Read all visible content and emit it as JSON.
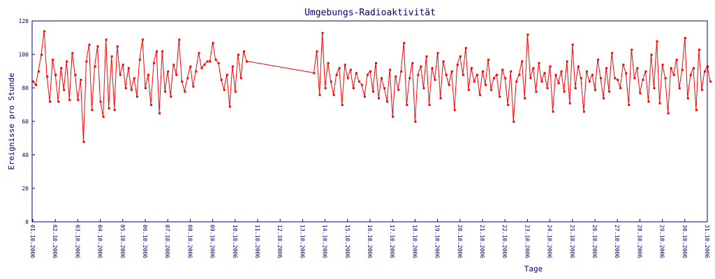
{
  "chart_data": {
    "type": "line",
    "title": "Umgebungs-Radioaktivität",
    "xlabel": "Tage",
    "ylabel": "Ereignisse pro Stunde",
    "ylim": [
      0,
      120
    ],
    "yticks": [
      0,
      20,
      40,
      60,
      80,
      100,
      120
    ],
    "xlim_days": [
      0,
      30
    ],
    "xtick_labels": [
      "01.10.2006",
      "02.10.2006",
      "03.10.2006",
      "04.10.2006",
      "05.10.2006",
      "06.10.2006",
      "07.10.2006",
      "08.10.2006",
      "09.10.2006",
      "10.10.2006",
      "11.10.2006",
      "12.10.2006",
      "13.10.2006",
      "14.10.2006",
      "15.10.2006",
      "16.10.2006",
      "17.10.2006",
      "18.10.2006",
      "19.10.2006",
      "20.10.2006",
      "21.10.2006",
      "22.10.2006",
      "23.10.2006",
      "24.10.2006",
      "25.10.2006",
      "26.10.2006",
      "27.10.2006",
      "28.10.2006",
      "29.10.2006",
      "30.10.2006",
      "31.10.2006"
    ],
    "grid": false,
    "colors": {
      "axis": "#000080",
      "series": "#ff0000"
    },
    "series": [
      {
        "name": "Ereignisse pro Stunde",
        "segments": [
          {
            "start_day": 0,
            "step_days": 0.125,
            "values": [
              84,
              82,
              90,
              100,
              114,
              87,
              72,
              97,
              88,
              72,
              92,
              79,
              96,
              73,
              101,
              88,
              73,
              85,
              48,
              96,
              106,
              67,
              93,
              105,
              72,
              63,
              109,
              68,
              99,
              67,
              105,
              88,
              94,
              80,
              92,
              79,
              86,
              75,
              97,
              109,
              80,
              88,
              70,
              95,
              102,
              65,
              102,
              78,
              90,
              75,
              94,
              88,
              109,
              84,
              78,
              86,
              93,
              81,
              90,
              101,
              92,
              94,
              96,
              96,
              107,
              97,
              95,
              85,
              79,
              88,
              69,
              93,
              78,
              100,
              86,
              102,
              96
            ]
          },
          {
            "start_day": 12.5,
            "step_days": 0.125,
            "values": [
              89,
              102,
              76,
              113,
              80,
              95,
              84,
              76,
              88,
              92,
              70,
              94,
              86,
              91,
              80,
              89,
              84,
              82,
              75,
              88,
              90,
              78,
              95,
              74,
              86,
              80,
              72,
              91,
              63,
              87,
              79,
              90,
              107,
              70,
              86,
              95,
              60,
              88,
              93,
              80,
              99,
              70,
              92,
              85,
              101,
              74,
              96,
              88,
              82,
              90,
              67,
              94,
              99,
              88,
              104,
              79,
              92,
              84,
              88,
              76,
              90,
              82,
              97,
              79,
              86,
              88,
              75,
              91,
              86,
              70,
              90,
              60,
              84,
              88,
              96,
              74,
              112,
              86,
              92,
              78,
              95,
              84,
              89,
              80,
              93,
              66,
              88,
              83,
              90,
              78,
              96,
              71,
              106,
              80,
              93,
              86,
              66,
              90,
              84,
              88,
              79,
              97,
              86,
              74,
              92,
              78,
              101,
              86,
              85,
              80,
              94,
              89,
              70,
              103,
              86,
              92,
              77,
              85,
              90,
              72,
              100,
              80,
              108,
              71,
              94,
              86,
              65,
              92,
              88,
              97,
              80,
              91,
              110,
              74,
              88,
              92,
              67,
              103,
              79,
              90,
              93,
              84
            ]
          }
        ]
      }
    ]
  }
}
